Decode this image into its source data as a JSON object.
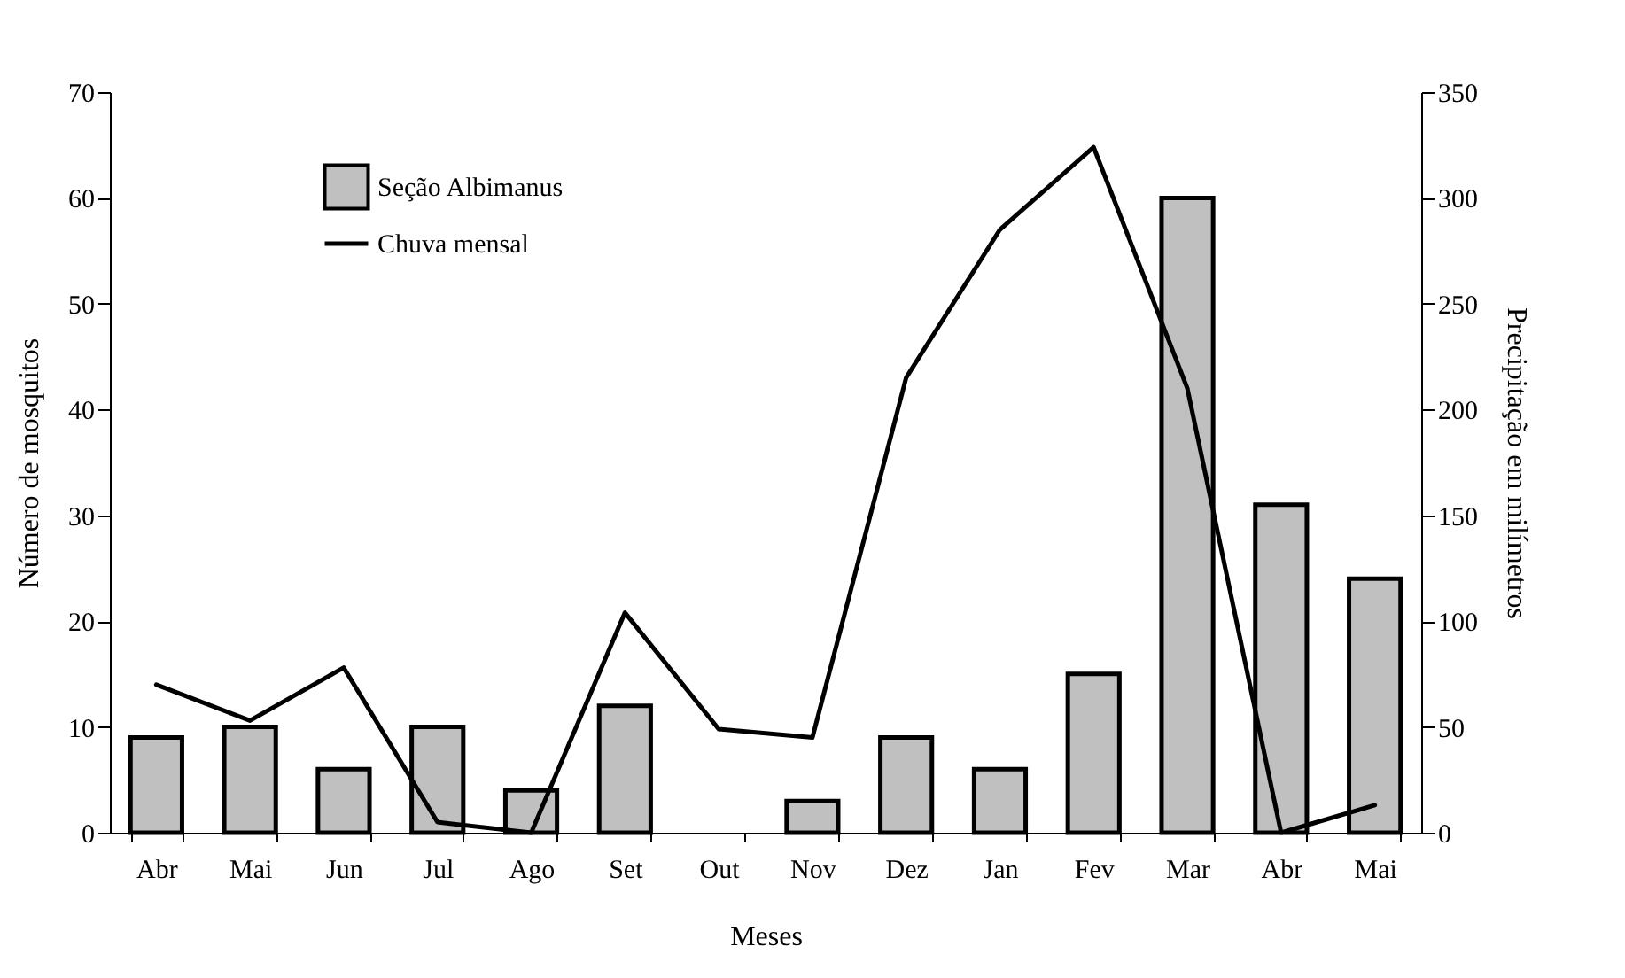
{
  "chart_data": {
    "type": "bar",
    "xlabel": "Meses",
    "ylabel": "Número de mosquitos",
    "y2label": "Precipitação em milímetros",
    "categories": [
      "Abr",
      "Mai",
      "Jun",
      "Jul",
      "Ago",
      "Set",
      "Out",
      "Nov",
      "Dez",
      "Jan",
      "Fev",
      "Mar",
      "Abr",
      "Mai"
    ],
    "series": [
      {
        "name": "Seção Albimanus",
        "color": "#c0c0c0",
        "values": [
          9,
          10,
          6,
          10,
          4,
          12,
          null,
          3,
          9,
          6,
          15,
          60,
          31,
          24
        ]
      },
      {
        "name": "Chuva mensal",
        "type": "line",
        "axis": "y2",
        "color": "#000000",
        "values": [
          70,
          53,
          78,
          5,
          0,
          104,
          49,
          45,
          215,
          285,
          324,
          210,
          0,
          13
        ]
      }
    ],
    "ylim": [
      0,
      70
    ],
    "yticks": [
      0,
      10,
      20,
      30,
      40,
      50,
      60,
      70
    ],
    "y2lim": [
      0,
      350
    ],
    "y2ticks": [
      0,
      50,
      100,
      150,
      200,
      250,
      300,
      350
    ],
    "grid": false,
    "legend": "top left"
  }
}
